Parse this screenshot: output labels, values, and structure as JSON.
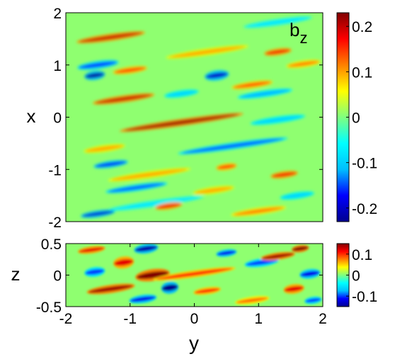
{
  "colormap": {
    "name": "jet",
    "stops": [
      "#00008f",
      "#0000ff",
      "#00bfff",
      "#00ffff",
      "#7fff7f",
      "#ffff00",
      "#ff8000",
      "#ff0000",
      "#800000"
    ]
  },
  "chart_data": [
    {
      "type": "heatmap",
      "panel": "top",
      "title": "",
      "annotation": {
        "base": "b",
        "subscript": "z"
      },
      "xlabel": "",
      "ylabel": "x",
      "xlim": [
        -2,
        2
      ],
      "ylim": [
        -2,
        2
      ],
      "xticks": [],
      "yticks": [
        -2,
        -1,
        0,
        1,
        2
      ],
      "ytick_labels": [
        "-2",
        "-1",
        "0",
        "1",
        "2"
      ],
      "colorbar": {
        "clim": [
          -0.23,
          0.23
        ],
        "ticks": [
          -0.2,
          -0.1,
          0,
          0.1,
          0.2
        ],
        "tick_labels": [
          "-0.2",
          "-0.1",
          "0",
          "0.1",
          "0.2"
        ]
      },
      "streaks": [
        {
          "x": -1.3,
          "y": 1.53,
          "len": 1.0,
          "w": 0.07,
          "v": 0.2
        },
        {
          "x": 0.2,
          "y": 1.25,
          "len": 1.2,
          "w": 0.06,
          "v": 0.1
        },
        {
          "x": 1.3,
          "y": 1.82,
          "len": 1.0,
          "w": 0.05,
          "v": -0.08
        },
        {
          "x": 1.3,
          "y": 1.25,
          "len": 0.4,
          "w": 0.05,
          "v": 0.18
        },
        {
          "x": 1.7,
          "y": 1.02,
          "len": 0.5,
          "w": 0.05,
          "v": 0.12
        },
        {
          "x": -1.5,
          "y": 1.0,
          "len": 0.6,
          "w": 0.08,
          "v": -0.16
        },
        {
          "x": -1.55,
          "y": 0.8,
          "len": 0.3,
          "w": 0.09,
          "v": -0.22
        },
        {
          "x": -1.0,
          "y": 0.9,
          "len": 0.5,
          "w": 0.05,
          "v": 0.15
        },
        {
          "x": 0.35,
          "y": 0.8,
          "len": 0.35,
          "w": 0.1,
          "v": -0.2
        },
        {
          "x": 0.9,
          "y": 0.62,
          "len": 0.6,
          "w": 0.06,
          "v": 0.14
        },
        {
          "x": -1.1,
          "y": 0.35,
          "len": 0.9,
          "w": 0.07,
          "v": 0.2
        },
        {
          "x": -0.2,
          "y": 0.45,
          "len": 0.5,
          "w": 0.05,
          "v": -0.1
        },
        {
          "x": 1.1,
          "y": 0.45,
          "len": 0.8,
          "w": 0.05,
          "v": -0.12
        },
        {
          "x": -0.2,
          "y": -0.1,
          "len": 1.8,
          "w": 0.06,
          "v": 0.22
        },
        {
          "x": 1.3,
          "y": -0.05,
          "len": 0.8,
          "w": 0.04,
          "v": -0.1
        },
        {
          "x": 0.6,
          "y": -0.55,
          "len": 1.6,
          "w": 0.05,
          "v": -0.15
        },
        {
          "x": -1.4,
          "y": -0.6,
          "len": 0.6,
          "w": 0.05,
          "v": 0.1
        },
        {
          "x": -1.3,
          "y": -0.9,
          "len": 0.5,
          "w": 0.06,
          "v": -0.18
        },
        {
          "x": 0.5,
          "y": -0.95,
          "len": 0.3,
          "w": 0.05,
          "v": 0.15
        },
        {
          "x": 1.4,
          "y": -1.1,
          "len": 0.4,
          "w": 0.06,
          "v": 0.18
        },
        {
          "x": -0.7,
          "y": -1.1,
          "len": 1.2,
          "w": 0.05,
          "v": 0.1
        },
        {
          "x": -0.9,
          "y": -1.35,
          "len": 0.9,
          "w": 0.05,
          "v": -0.15
        },
        {
          "x": 0.3,
          "y": -1.4,
          "len": 0.6,
          "w": 0.05,
          "v": 0.1
        },
        {
          "x": 1.6,
          "y": -1.5,
          "len": 0.5,
          "w": 0.05,
          "v": -0.1
        },
        {
          "x": -0.6,
          "y": -1.65,
          "len": 1.4,
          "w": 0.05,
          "v": -0.08
        },
        {
          "x": -1.5,
          "y": -1.85,
          "len": 0.5,
          "w": 0.06,
          "v": -0.2
        },
        {
          "x": -0.4,
          "y": -1.7,
          "len": 0.4,
          "w": 0.06,
          "v": 0.18
        },
        {
          "x": 1.0,
          "y": -1.8,
          "len": 0.8,
          "w": 0.05,
          "v": 0.12
        }
      ]
    },
    {
      "type": "heatmap",
      "panel": "bottom",
      "title": "",
      "xlabel": "y",
      "ylabel": "z",
      "xlim": [
        -2,
        2
      ],
      "ylim": [
        -0.5,
        0.5
      ],
      "xticks": [
        -2,
        -1,
        0,
        1,
        2
      ],
      "xtick_labels": [
        "-2",
        "-1",
        "0",
        "1",
        "2"
      ],
      "yticks": [
        -0.5,
        0,
        0.5
      ],
      "ytick_labels": [
        "-0.5",
        "0",
        "0.5"
      ],
      "colorbar": {
        "clim": [
          -0.15,
          0.15
        ],
        "ticks": [
          -0.1,
          0,
          0.1
        ],
        "tick_labels": [
          "-0.1",
          "0",
          "0.1"
        ]
      },
      "streaks": [
        {
          "x": -1.6,
          "y": 0.4,
          "len": 0.4,
          "w": 0.06,
          "v": 0.12
        },
        {
          "x": -0.75,
          "y": 0.42,
          "len": 0.35,
          "w": 0.08,
          "v": -0.14
        },
        {
          "x": 1.65,
          "y": 0.42,
          "len": 0.25,
          "w": 0.06,
          "v": 0.15
        },
        {
          "x": -1.1,
          "y": 0.2,
          "len": 0.3,
          "w": 0.1,
          "v": 0.12
        },
        {
          "x": 1.05,
          "y": 0.2,
          "len": 0.5,
          "w": 0.07,
          "v": -0.1
        },
        {
          "x": 1.3,
          "y": 0.3,
          "len": 0.5,
          "w": 0.06,
          "v": 0.14
        },
        {
          "x": 0.5,
          "y": 0.35,
          "len": 0.3,
          "w": 0.06,
          "v": -0.12
        },
        {
          "x": -0.65,
          "y": 0.0,
          "len": 0.5,
          "w": 0.1,
          "v": 0.15
        },
        {
          "x": 0.0,
          "y": 0.02,
          "len": 1.2,
          "w": 0.06,
          "v": 0.1
        },
        {
          "x": -1.55,
          "y": 0.05,
          "len": 0.3,
          "w": 0.08,
          "v": -0.1
        },
        {
          "x": 1.8,
          "y": 0.02,
          "len": 0.3,
          "w": 0.08,
          "v": -0.12
        },
        {
          "x": -1.3,
          "y": -0.22,
          "len": 0.7,
          "w": 0.07,
          "v": 0.14
        },
        {
          "x": -0.38,
          "y": -0.2,
          "len": 0.25,
          "w": 0.1,
          "v": -0.15
        },
        {
          "x": 0.2,
          "y": -0.25,
          "len": 0.4,
          "w": 0.06,
          "v": 0.1
        },
        {
          "x": 1.55,
          "y": -0.22,
          "len": 0.3,
          "w": 0.08,
          "v": 0.12
        },
        {
          "x": -0.8,
          "y": -0.38,
          "len": 0.4,
          "w": 0.07,
          "v": -0.12
        },
        {
          "x": 0.9,
          "y": -0.4,
          "len": 0.5,
          "w": 0.06,
          "v": 0.08
        },
        {
          "x": 1.85,
          "y": -0.4,
          "len": 0.25,
          "w": 0.06,
          "v": -0.1
        }
      ]
    }
  ]
}
